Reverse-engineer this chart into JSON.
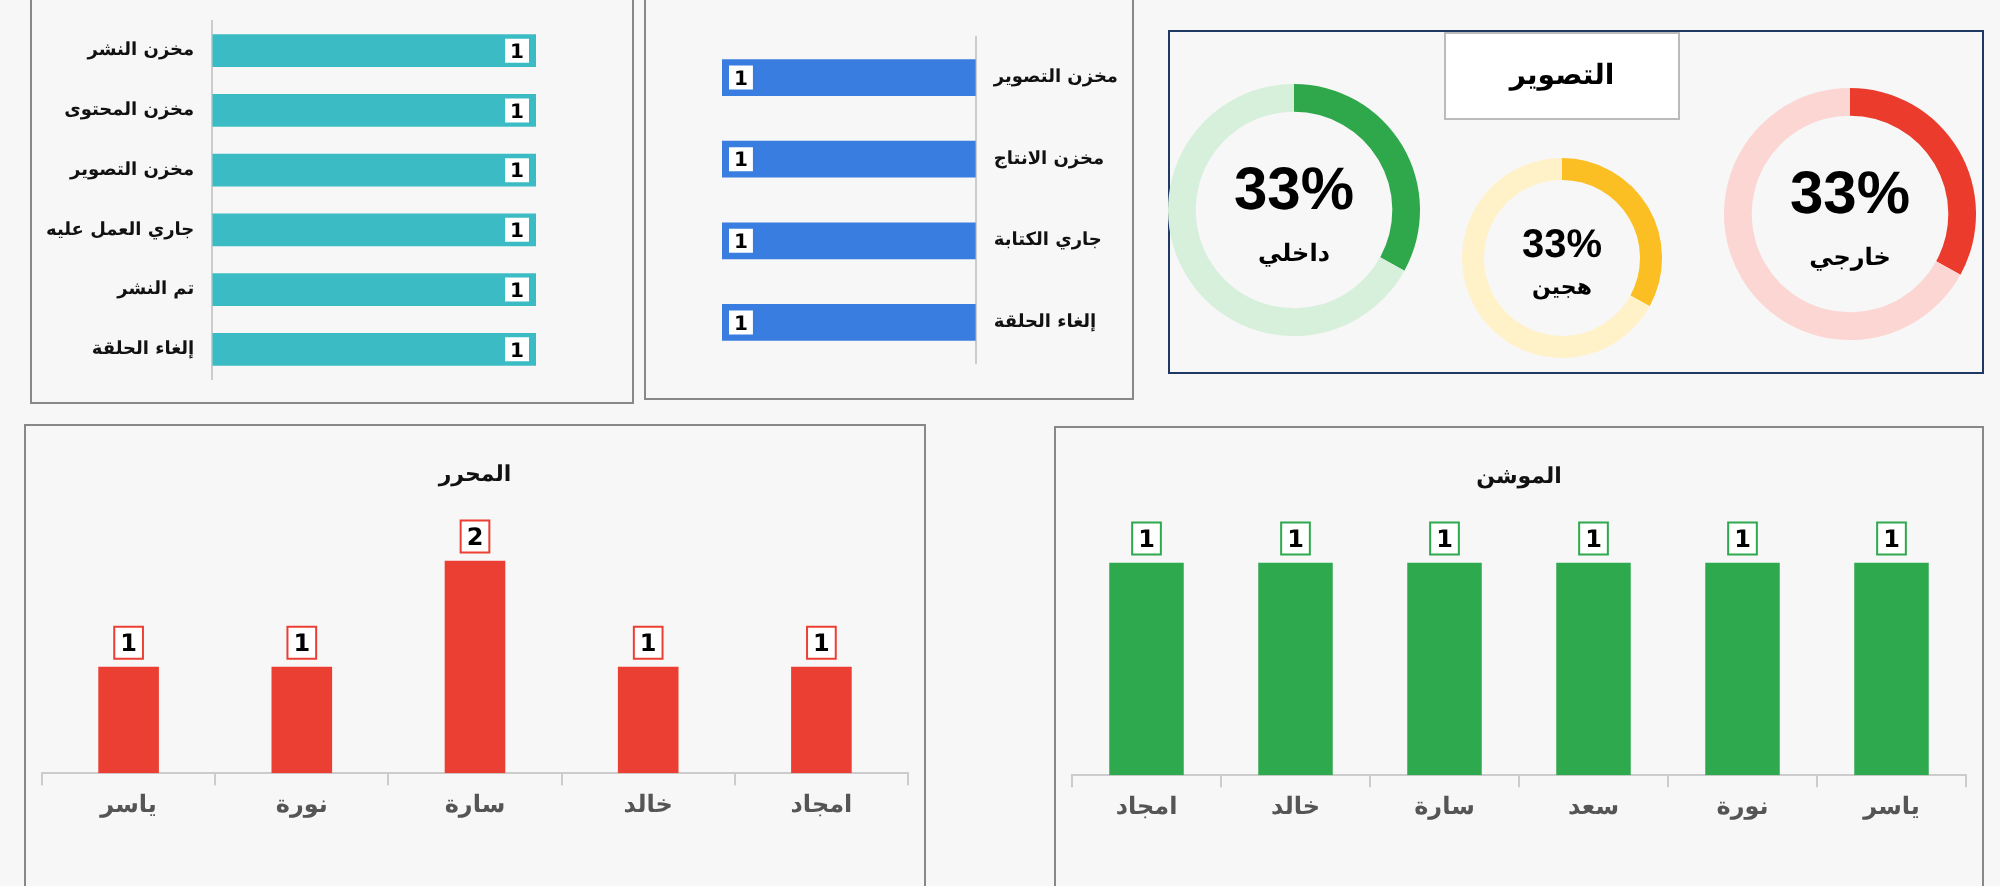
{
  "chart_data": [
    {
      "type": "bar",
      "orientation": "horizontal",
      "categories": [
        "مخزن النشر",
        "مخزن المحتوى",
        "مخزن التصوير",
        "جاري العمل عليه",
        "تم النشر",
        "إلغاء الحلقة"
      ],
      "values": [
        1,
        1,
        1,
        1,
        1,
        1
      ],
      "color": "#3bbcc4",
      "data_labels": true
    },
    {
      "type": "bar",
      "orientation": "horizontal",
      "categories": [
        "مخزن التصوير",
        "مخزن الانتاج",
        "جاري الكتابة",
        "إلغاء الحلقة"
      ],
      "values": [
        1,
        1,
        1,
        1
      ],
      "color": "#3a7de0",
      "data_labels": true
    },
    {
      "type": "other",
      "title": "التصوير"
    },
    {
      "type": "donut",
      "categories": [
        "داخلي",
        null
      ],
      "values": [
        33,
        67
      ],
      "colors": [
        "#2ea84a",
        "#d6f0dc"
      ],
      "value_labels": [
        "33%",
        null
      ]
    },
    {
      "type": "donut",
      "categories": [
        "هجين",
        null
      ],
      "values": [
        33,
        67
      ],
      "colors": [
        "#fbbf24",
        "#fff1c8"
      ],
      "value_labels": [
        "33%",
        null
      ]
    },
    {
      "type": "donut",
      "categories": [
        "خارجي",
        null
      ],
      "values": [
        33,
        67
      ],
      "colors": [
        "#ea3b2c",
        "#fbd6d3"
      ],
      "value_labels": [
        "33%",
        null
      ]
    },
    {
      "type": "bar",
      "title": "المحرر",
      "categories": [
        "ياسر",
        "نورة",
        "سارة",
        "خالد",
        "امجاد"
      ],
      "values": [
        1,
        1,
        2,
        1,
        1
      ],
      "color": "#ec3f33",
      "data_labels": true
    },
    {
      "type": "bar",
      "title": "الموشن",
      "categories": [
        "امجاد",
        "خالد",
        "سارة",
        "سعد",
        "نورة",
        "ياسر"
      ],
      "values": [
        1,
        1,
        1,
        1,
        1,
        1
      ],
      "color": "#2fa94e",
      "data_labels": true
    }
  ]
}
